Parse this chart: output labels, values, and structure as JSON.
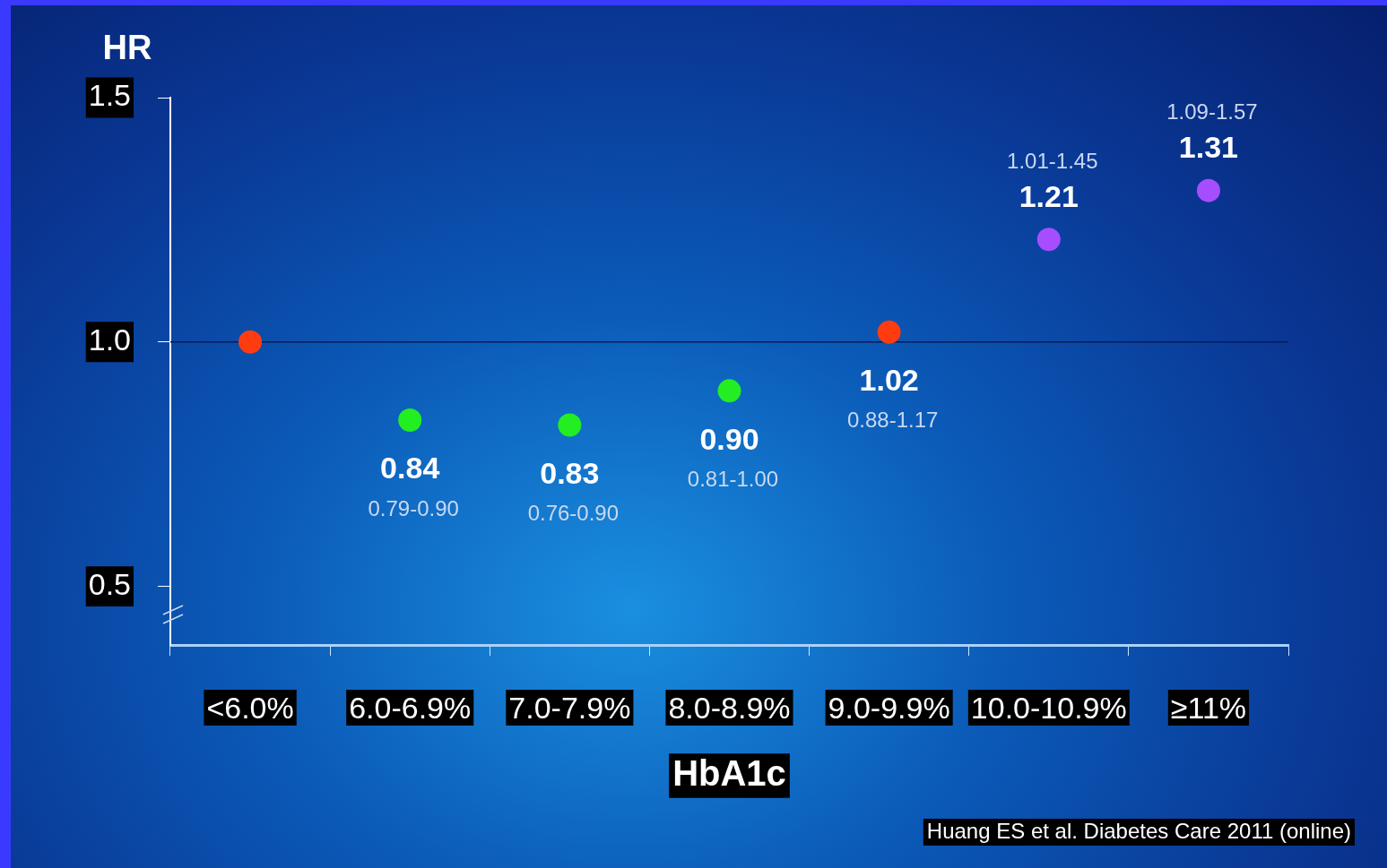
{
  "chart_data": {
    "type": "scatter",
    "ylabel": "HR",
    "xlabel": "HbA1c",
    "categories": [
      "<6.0%",
      "6.0-6.9%",
      "7.0-7.9%",
      "8.0-8.9%",
      "9.0-9.9%",
      "10.0-10.9%",
      "≥11%"
    ],
    "values": [
      1.0,
      0.84,
      0.83,
      0.9,
      1.02,
      1.21,
      1.31
    ],
    "colors": [
      "#ff3c10",
      "#22ee22",
      "#22ee22",
      "#22ee22",
      "#ff3c10",
      "#a64dff",
      "#a64dff"
    ],
    "value_labels": [
      null,
      "0.84",
      "0.83",
      "0.90",
      "1.02",
      "1.21",
      "1.31"
    ],
    "marker": "circle",
    "grid": false,
    "legend": false,
    "ylim": [
      0.38,
      1.5
    ],
    "yticks": [
      {
        "value": 0.5,
        "label": "0.5"
      },
      {
        "value": 1.0,
        "label": "1.0"
      },
      {
        "value": 1.5,
        "label": "1.5"
      }
    ],
    "ref_lines": [
      {
        "axis": "y",
        "value": 1.0,
        "color": "#0a1a55"
      }
    ],
    "annotations": [
      "0.79-0.90",
      "0.76-0.90",
      "0.81-1.00",
      "0.88-1.17",
      "1.01-1.45",
      "1.09-1.57",
      "Huang ES et al. Diabetes Care 2011 (online)"
    ]
  }
}
